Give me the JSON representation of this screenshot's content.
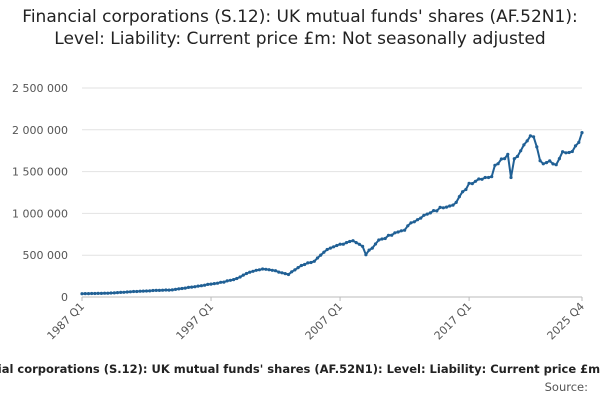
{
  "chart_data": {
    "type": "line",
    "title": "Financial corporations (S.12): UK mutual funds' shares (AF.52N1): Level: Liability: Current price £m: Not seasonally adjusted",
    "series_name": "Financial corporations (S.12): UK mutual funds' shares (AF.52N1): Level: Liability: Current price £m: Not seasonally adjusted",
    "source_label": "Source:",
    "xlabel": "",
    "ylabel": "",
    "ylim": [
      0,
      2500000
    ],
    "y_ticks": [
      {
        "value": 0,
        "label": "0"
      },
      {
        "value": 500000,
        "label": "500 000"
      },
      {
        "value": 1000000,
        "label": "1 000 000"
      },
      {
        "value": 1500000,
        "label": "1 500 000"
      },
      {
        "value": 2000000,
        "label": "2 000 000"
      },
      {
        "value": 2500000,
        "label": "2 500 000"
      }
    ],
    "x_ticks": [
      "1987 Q1",
      "1997 Q1",
      "2007 Q1",
      "2017 Q1",
      "2025 Q4"
    ],
    "x_range": [
      1987.0,
      2025.75
    ],
    "color": "#206095",
    "anchors": [
      [
        1987.0,
        40000
      ],
      [
        1989.0,
        45000
      ],
      [
        1991.0,
        65000
      ],
      [
        1993.0,
        80000
      ],
      [
        1994.0,
        85000
      ],
      [
        1996.0,
        130000
      ],
      [
        1998.0,
        180000
      ],
      [
        1999.0,
        220000
      ],
      [
        2000.0,
        300000
      ],
      [
        2001.0,
        340000
      ],
      [
        2002.0,
        310000
      ],
      [
        2003.0,
        270000
      ],
      [
        2004.0,
        380000
      ],
      [
        2005.0,
        430000
      ],
      [
        2006.0,
        560000
      ],
      [
        2007.0,
        630000
      ],
      [
        2008.0,
        680000
      ],
      [
        2008.75,
        600000
      ],
      [
        2009.0,
        510000
      ],
      [
        2010.0,
        680000
      ],
      [
        2011.0,
        740000
      ],
      [
        2012.0,
        810000
      ],
      [
        2013.0,
        940000
      ],
      [
        2014.0,
        1000000
      ],
      [
        2015.0,
        1080000
      ],
      [
        2016.0,
        1130000
      ],
      [
        2017.0,
        1360000
      ],
      [
        2018.0,
        1430000
      ],
      [
        2018.75,
        1450000
      ],
      [
        2019.0,
        1560000
      ],
      [
        2019.5,
        1670000
      ],
      [
        2020.0,
        1700000
      ],
      [
        2020.25,
        1450000
      ],
      [
        2020.5,
        1660000
      ],
      [
        2021.0,
        1750000
      ],
      [
        2021.5,
        1900000
      ],
      [
        2022.0,
        1920000
      ],
      [
        2022.5,
        1640000
      ],
      [
        2022.75,
        1570000
      ],
      [
        2023.25,
        1620000
      ],
      [
        2023.75,
        1590000
      ],
      [
        2024.0,
        1680000
      ],
      [
        2024.5,
        1750000
      ],
      [
        2025.0,
        1760000
      ],
      [
        2025.5,
        1880000
      ],
      [
        2025.75,
        1960000
      ]
    ]
  }
}
